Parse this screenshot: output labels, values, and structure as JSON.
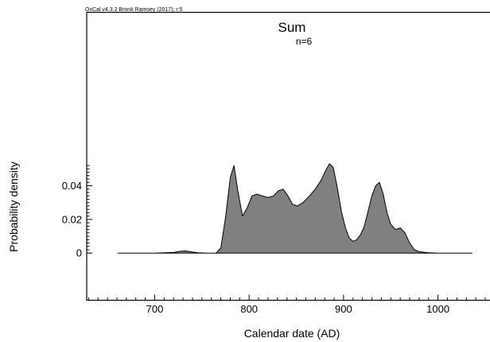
{
  "header": {
    "version_note": "OxCal v4.3.2 Bronk Ramsey (2017); r:5",
    "title": "Sum",
    "subtitle": "n=6"
  },
  "chart_data": {
    "type": "area",
    "title": "Sum",
    "annotation": "n=6",
    "xlabel": "Calendar date (AD)",
    "ylabel": "Probability density",
    "xlim": [
      628,
      1066
    ],
    "ylim": [
      -0.028,
      0.143
    ],
    "x_ticks": [
      700,
      800,
      900,
      1000
    ],
    "x_tick_labels": [
      "700",
      "800",
      "900",
      "1000"
    ],
    "y_ticks": [
      0,
      0.02,
      0.04
    ],
    "y_tick_labels": [
      "0",
      "0.02",
      "0.04"
    ],
    "grid": false,
    "fill_color": "#808080",
    "line_color": "#000000",
    "series": [
      {
        "x": [
          661,
          700,
          720,
          728,
          733,
          738,
          745,
          755,
          765,
          770,
          775,
          780,
          784,
          788,
          793,
          798,
          803,
          808,
          814,
          820,
          826,
          831,
          836,
          841,
          846,
          851,
          857,
          864,
          870,
          876,
          881,
          885,
          889,
          893,
          898,
          902,
          906,
          910,
          914,
          918,
          922,
          926,
          930,
          934,
          938,
          942,
          946,
          950,
          955,
          960,
          965,
          970,
          975,
          980,
          990,
          1000,
          1010,
          1036
        ],
        "y": [
          0,
          0,
          0.0004,
          0.0012,
          0.0013,
          0.0008,
          0.0002,
          0,
          0,
          0.003,
          0.021,
          0.045,
          0.052,
          0.037,
          0.022,
          0.027,
          0.034,
          0.035,
          0.034,
          0.033,
          0.034,
          0.037,
          0.038,
          0.034,
          0.029,
          0.028,
          0.03,
          0.034,
          0.038,
          0.043,
          0.049,
          0.053,
          0.051,
          0.04,
          0.024,
          0.015,
          0.009,
          0.007,
          0.008,
          0.011,
          0.016,
          0.025,
          0.034,
          0.04,
          0.042,
          0.035,
          0.024,
          0.017,
          0.014,
          0.015,
          0.012,
          0.006,
          0.002,
          0.0008,
          0.0002,
          0,
          0,
          0
        ]
      }
    ]
  }
}
